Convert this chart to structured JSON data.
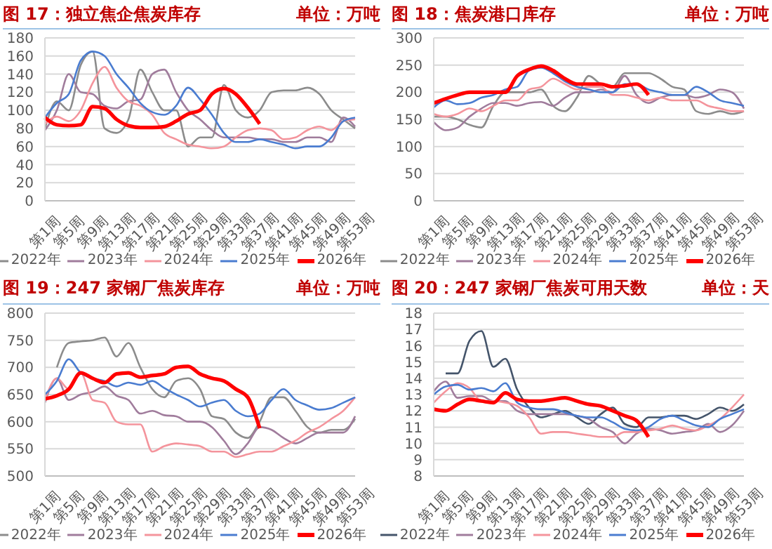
{
  "chart_data": [
    {
      "type": "line",
      "title": "图 17：独立焦企焦炭库存",
      "subtitle": "单位：万吨",
      "categories": [
        "第1周",
        null,
        "第5周",
        null,
        "第9周",
        null,
        "第13周",
        null,
        "第17周",
        null,
        "第21周",
        null,
        "第25周",
        null,
        "第29周",
        null,
        "第33周",
        null,
        "第37周",
        null,
        "第41周",
        null,
        "第45周",
        null,
        "第49周",
        null,
        "第53周"
      ],
      "ylim": [
        0,
        180
      ],
      "yticks": [
        0,
        20,
        40,
        60,
        80,
        100,
        120,
        140,
        160,
        180
      ],
      "grid": "y",
      "legend": "bottom",
      "marker": "none",
      "line_style": "solid",
      "series": [
        {
          "name": "2022年",
          "color": "#8c8c8c",
          "values": [
            80,
            110,
            100,
            150,
            165,
            80,
            75,
            90,
            145,
            120,
            100,
            100,
            60,
            70,
            70,
            128,
            100,
            92,
            100,
            120,
            122,
            122,
            125,
            118,
            100,
            90,
            80
          ]
        },
        {
          "name": "2023年",
          "color": "#a07c9c",
          "values": [
            78,
            100,
            140,
            120,
            118,
            105,
            102,
            110,
            112,
            140,
            145,
            120,
            100,
            90,
            78,
            70,
            70,
            70,
            68,
            68,
            65,
            65,
            70,
            70,
            65,
            92,
            82
          ]
        },
        {
          "name": "2024年",
          "color": "#f4949c",
          "values": [
            85,
            93,
            88,
            100,
            130,
            148,
            125,
            110,
            105,
            95,
            75,
            68,
            62,
            60,
            58,
            60,
            70,
            78,
            80,
            78,
            68,
            70,
            78,
            82,
            78,
            88,
            90
          ]
        },
        {
          "name": "2025年",
          "color": "#4a7cd0",
          "values": [
            92,
            108,
            118,
            155,
            165,
            160,
            140,
            125,
            108,
            98,
            95,
            105,
            125,
            112,
            95,
            75,
            65,
            65,
            68,
            65,
            62,
            58,
            60,
            60,
            70,
            88,
            92
          ]
        },
        {
          "name": "2026年",
          "color": "#ff0000",
          "values": [
            92,
            84,
            83,
            84,
            104,
            102,
            90,
            83,
            81,
            81,
            82,
            88,
            96,
            100,
            118,
            124,
            118,
            103,
            85,
            null,
            null,
            null,
            null,
            null,
            null,
            null,
            null
          ]
        }
      ]
    },
    {
      "type": "line",
      "title": "图 18：焦炭港口库存",
      "subtitle": "单位：万吨",
      "categories": [
        "第1周",
        null,
        "第5周",
        null,
        "第9周",
        null,
        "第13周",
        null,
        "第17周",
        null,
        "第21周",
        null,
        "第25周",
        null,
        "第29周",
        null,
        "第33周",
        null,
        "第37周",
        null,
        "第41周",
        null,
        "第45周",
        null,
        "第49周",
        null,
        "第53周"
      ],
      "ylim": [
        0,
        300
      ],
      "yticks": [
        0,
        50,
        100,
        150,
        200,
        250,
        300
      ],
      "grid": "y",
      "legend": "bottom",
      "marker": "none",
      "line_style": "solid",
      "series": [
        {
          "name": "2022年",
          "color": "#8c8c8c",
          "values": [
            155,
            155,
            150,
            140,
            135,
            175,
            200,
            200,
            200,
            205,
            175,
            165,
            190,
            230,
            215,
            210,
            235,
            235,
            235,
            225,
            210,
            205,
            165,
            160,
            165,
            160,
            165
          ]
        },
        {
          "name": "2023年",
          "color": "#a07c9c",
          "values": [
            145,
            130,
            135,
            155,
            170,
            180,
            180,
            175,
            180,
            182,
            175,
            190,
            200,
            200,
            205,
            200,
            230,
            195,
            180,
            190,
            195,
            195,
            190,
            195,
            205,
            200,
            170
          ]
        },
        {
          "name": "2024年",
          "color": "#f4949c",
          "values": [
            160,
            155,
            160,
            170,
            165,
            175,
            185,
            185,
            205,
            210,
            225,
            215,
            205,
            210,
            210,
            195,
            195,
            190,
            185,
            190,
            185,
            185,
            185,
            175,
            170,
            165,
            165
          ]
        },
        {
          "name": "2025年",
          "color": "#4a7cd0",
          "values": [
            172,
            185,
            178,
            180,
            190,
            195,
            205,
            210,
            240,
            245,
            235,
            220,
            210,
            205,
            200,
            200,
            215,
            215,
            205,
            200,
            195,
            195,
            210,
            200,
            185,
            180,
            175
          ]
        },
        {
          "name": "2026年",
          "color": "#ff0000",
          "values": [
            180,
            188,
            195,
            200,
            200,
            200,
            200,
            230,
            242,
            248,
            240,
            225,
            215,
            215,
            215,
            210,
            212,
            215,
            195,
            null,
            null,
            null,
            null,
            null,
            null,
            null,
            null
          ]
        }
      ]
    },
    {
      "type": "line",
      "title": "图 19：247 家钢厂焦炭库存",
      "subtitle": "单位：万吨",
      "categories": [
        "第1周",
        null,
        "第5周",
        null,
        "第9周",
        null,
        "第13周",
        null,
        "第17周",
        null,
        "第21周",
        null,
        "第25周",
        null,
        "第29周",
        null,
        "第33周",
        null,
        "第37周",
        null,
        "第41周",
        null,
        "第45周",
        null,
        "第49周",
        null,
        "第53周"
      ],
      "ylim": [
        500,
        800
      ],
      "yticks": [
        500,
        550,
        600,
        650,
        700,
        750,
        800
      ],
      "grid": "y",
      "legend": "bottom",
      "marker": "none",
      "line_style": "solid",
      "series": [
        {
          "name": "2022年",
          "color": "#8c8c8c",
          "values": [
            null,
            700,
            745,
            748,
            750,
            755,
            720,
            745,
            700,
            660,
            645,
            675,
            680,
            660,
            610,
            605,
            580,
            570,
            600,
            645,
            645,
            620,
            590,
            580,
            585,
            585,
            605
          ]
        },
        {
          "name": "2023年",
          "color": "#a07c9c",
          "values": [
            635,
            680,
            640,
            650,
            655,
            665,
            648,
            640,
            615,
            620,
            612,
            610,
            600,
            600,
            590,
            565,
            540,
            560,
            590,
            585,
            570,
            560,
            570,
            580,
            580,
            580,
            610
          ]
        },
        {
          "name": "2024年",
          "color": "#f4949c",
          "values": [
            640,
            680,
            660,
            690,
            640,
            635,
            600,
            595,
            595,
            545,
            555,
            560,
            558,
            555,
            545,
            545,
            535,
            540,
            545,
            545,
            555,
            565,
            580,
            590,
            605,
            620,
            645
          ]
        },
        {
          "name": "2025年",
          "color": "#4a7cd0",
          "values": [
            650,
            675,
            715,
            690,
            680,
            675,
            665,
            672,
            668,
            675,
            662,
            650,
            640,
            628,
            635,
            640,
            620,
            610,
            615,
            640,
            660,
            640,
            630,
            622,
            625,
            635,
            645
          ]
        },
        {
          "name": "2026年",
          "color": "#ff0000",
          "values": [
            642,
            648,
            660,
            690,
            680,
            672,
            688,
            690,
            682,
            685,
            688,
            700,
            702,
            688,
            680,
            675,
            660,
            645,
            588,
            null,
            null,
            null,
            null,
            null,
            null,
            null,
            null
          ]
        }
      ]
    },
    {
      "type": "line",
      "title": "图 20：247 家钢厂焦炭可用天数",
      "subtitle": "单位：天",
      "categories": [
        "第1周",
        null,
        "第5周",
        null,
        "第9周",
        null,
        "第13周",
        null,
        "第17周",
        null,
        "第21周",
        null,
        "第25周",
        null,
        "第29周",
        null,
        "第33周",
        null,
        "第37周",
        null,
        "第41周",
        null,
        "第45周",
        null,
        "第49周",
        null,
        "第53周"
      ],
      "ylim": [
        8,
        18
      ],
      "yticks": [
        8,
        9,
        10,
        11,
        12,
        13,
        14,
        15,
        16,
        17,
        18
      ],
      "grid": "y",
      "legend": "bottom",
      "marker": "none",
      "line_style": "solid",
      "series": [
        {
          "name": "2022年",
          "color": "#44546a",
          "values": [
            null,
            14.3,
            14.3,
            16.3,
            16.9,
            14.7,
            15.2,
            13.3,
            12.2,
            11.6,
            11.8,
            12.0,
            11.6,
            11.2,
            11.8,
            12.2,
            11.2,
            11.0,
            11.6,
            11.6,
            11.7,
            11.7,
            11.5,
            11.8,
            12.2,
            12.0,
            12.4
          ]
        },
        {
          "name": "2023年",
          "color": "#a07c9c",
          "values": [
            13.2,
            13.8,
            12.8,
            12.9,
            12.9,
            12.6,
            12.6,
            12.0,
            11.8,
            11.8,
            11.8,
            11.8,
            11.7,
            11.5,
            11.0,
            10.7,
            10.0,
            10.6,
            10.9,
            10.8,
            10.6,
            10.7,
            10.8,
            11.2,
            10.7,
            11.1,
            12.0
          ]
        },
        {
          "name": "2024年",
          "color": "#f4949c",
          "values": [
            12.5,
            13.2,
            13.7,
            13.4,
            12.6,
            12.6,
            12.5,
            12.3,
            11.6,
            10.6,
            10.7,
            10.7,
            10.6,
            10.5,
            10.4,
            10.4,
            10.7,
            10.7,
            10.8,
            10.9,
            11.1,
            10.9,
            10.8,
            11.1,
            11.5,
            12.2,
            13.0
          ]
        },
        {
          "name": "2025年",
          "color": "#4a7cd0",
          "values": [
            13.0,
            13.5,
            13.6,
            13.3,
            13.4,
            13.2,
            13.7,
            12.5,
            12.2,
            12.1,
            12.1,
            11.9,
            11.7,
            11.6,
            11.6,
            11.3,
            10.9,
            10.8,
            11.0,
            11.5,
            11.7,
            11.4,
            11.1,
            11.0,
            11.5,
            11.8,
            12.1
          ]
        },
        {
          "name": "2026年",
          "color": "#ff0000",
          "values": [
            12.1,
            12.0,
            12.4,
            12.7,
            12.6,
            12.5,
            13.1,
            12.7,
            12.6,
            12.6,
            12.7,
            12.8,
            12.6,
            12.4,
            12.3,
            12.0,
            11.7,
            11.4,
            10.4,
            null,
            null,
            null,
            null,
            null,
            null,
            null,
            null
          ]
        }
      ]
    }
  ]
}
